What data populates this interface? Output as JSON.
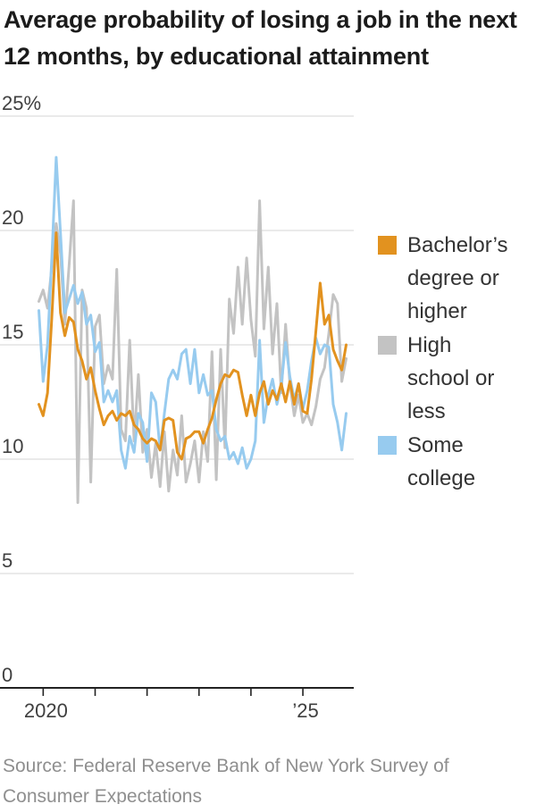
{
  "title": {
    "line1": "Average probability of losing a job in the next",
    "line2": "12 months, by educational attainment"
  },
  "source": {
    "line1": "Source: Federal Reserve Bank of New York Survey of",
    "line2": "Consumer Expectations"
  },
  "chart_data": {
    "type": "line",
    "title": "Average probability of losing a job in the next 12 months, by educational attainment",
    "x_start": "2019-12",
    "x_frequency": "monthly",
    "ylim": [
      0,
      25
    ],
    "grid": "horizontal",
    "legend_position": "right",
    "y_ticks": [
      {
        "value": 25,
        "label": "25%"
      },
      {
        "value": 20,
        "label": "20"
      },
      {
        "value": 15,
        "label": "15"
      },
      {
        "value": 10,
        "label": "10"
      },
      {
        "value": 5,
        "label": "5"
      },
      {
        "value": 0,
        "label": "0"
      }
    ],
    "x_tick_years": [
      "2020",
      "2021",
      "2022",
      "2023",
      "2024",
      "2025"
    ],
    "x_tick_labels": [
      "2020",
      "",
      "",
      "",
      "",
      "’25"
    ],
    "series": [
      {
        "name": "High school or less",
        "color": "#c3c3c3",
        "values": [
          16.9,
          17.4,
          16.6,
          18.4,
          20.3,
          19.0,
          15.9,
          18.5,
          21.3,
          8.1,
          17.4,
          16.6,
          9.0,
          15.8,
          16.3,
          13.3,
          14.1,
          13.5,
          18.3,
          11.3,
          10.8,
          15.2,
          10.8,
          13.7,
          10.3,
          11.3,
          9.2,
          10.7,
          8.8,
          11.2,
          8.6,
          10.4,
          9.3,
          11.9,
          9.0,
          9.8,
          10.8,
          9.0,
          11.2,
          9.9,
          14.7,
          9.1,
          14.8,
          10.5,
          17.0,
          15.5,
          18.4,
          15.9,
          18.8,
          16.1,
          14.5,
          21.3,
          15.7,
          18.4,
          14.6,
          16.8,
          12.9,
          15.9,
          13.3,
          11.9,
          12.8,
          11.6,
          12.0,
          11.5,
          12.3,
          13.5,
          14.0,
          15.5,
          17.2,
          16.8,
          13.4,
          14.4
        ]
      },
      {
        "name": "Some college",
        "color": "#97cbef",
        "values": [
          16.5,
          13.4,
          15.0,
          18.8,
          23.2,
          19.9,
          16.4,
          17.0,
          17.6,
          16.8,
          17.3,
          15.9,
          16.3,
          14.7,
          15.1,
          12.5,
          13.0,
          12.5,
          13.0,
          10.4,
          9.6,
          11.0,
          10.3,
          12.0,
          11.6,
          9.9,
          12.9,
          12.5,
          10.4,
          12.0,
          13.5,
          13.9,
          13.5,
          14.6,
          14.8,
          13.3,
          14.8,
          12.9,
          13.7,
          12.8,
          13.0,
          11.3,
          10.8,
          11.0,
          10.0,
          10.3,
          9.8,
          10.5,
          9.6,
          10.0,
          10.8,
          15.2,
          11.6,
          12.8,
          13.5,
          12.4,
          13.2,
          15.1,
          13.6,
          12.6,
          13.3,
          12.2,
          13.0,
          14.3,
          15.3,
          14.6,
          15.0,
          14.9,
          12.4,
          11.6,
          10.4,
          12.0
        ]
      },
      {
        "name": "Bachelor’s degree or higher",
        "color": "#e2921f",
        "values": [
          12.4,
          11.9,
          12.9,
          16.2,
          19.9,
          16.4,
          15.4,
          16.2,
          16.0,
          14.8,
          14.3,
          13.5,
          14.0,
          13.0,
          12.2,
          11.5,
          11.9,
          12.1,
          11.7,
          12.0,
          11.9,
          12.1,
          11.5,
          11.3,
          10.9,
          10.7,
          10.9,
          10.8,
          10.4,
          11.7,
          11.8,
          11.7,
          10.3,
          10.0,
          10.9,
          11.0,
          11.2,
          11.2,
          10.7,
          11.3,
          11.8,
          12.6,
          13.3,
          13.7,
          13.6,
          13.9,
          13.8,
          12.8,
          11.9,
          12.8,
          11.9,
          12.9,
          13.4,
          12.4,
          13.0,
          12.6,
          13.3,
          12.5,
          13.4,
          12.4,
          13.3,
          12.1,
          12.0,
          13.5,
          15.6,
          17.7,
          15.9,
          16.3,
          14.8,
          14.3,
          13.9,
          15.0
        ]
      }
    ],
    "legend": [
      {
        "label": "Bachelor’s degree or higher",
        "label_lines": [
          "Bachelor’s",
          "degree or",
          "higher"
        ],
        "color": "#e2921f"
      },
      {
        "label": "High school or less",
        "label_lines": [
          "High",
          "school or",
          "less"
        ],
        "color": "#c3c3c3"
      },
      {
        "label": "Some college",
        "label_lines": [
          "Some",
          "college"
        ],
        "color": "#97cbef"
      }
    ],
    "colors": {
      "grid": "#dedede",
      "axis": "#222222",
      "tick_label": "#3f3f3f"
    }
  }
}
